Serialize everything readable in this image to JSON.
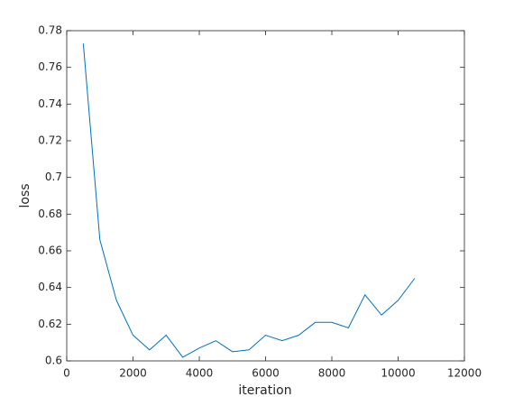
{
  "chart_data": {
    "type": "line",
    "xlabel": "iteration",
    "ylabel": "loss",
    "x": [
      500,
      1000,
      1500,
      2000,
      2500,
      3000,
      3500,
      4000,
      4500,
      5000,
      5500,
      6000,
      6500,
      7000,
      7500,
      8000,
      8500,
      9000,
      9500,
      10000,
      10500
    ],
    "series": [
      {
        "color": "#0072bd",
        "values": [
          0.773,
          0.666,
          0.633,
          0.614,
          0.606,
          0.614,
          0.602,
          0.607,
          0.611,
          0.605,
          0.606,
          0.614,
          0.611,
          0.614,
          0.621,
          0.621,
          0.618,
          0.636,
          0.625,
          0.633,
          0.645
        ]
      }
    ],
    "xlim": [
      0,
      12000
    ],
    "xticks": [
      0,
      2000,
      4000,
      6000,
      8000,
      10000,
      12000
    ],
    "ylim": [
      0.6,
      0.78
    ],
    "yticks": [
      0.6,
      0.62,
      0.64,
      0.66,
      0.68,
      0.7,
      0.72,
      0.74,
      0.76,
      0.78
    ],
    "grid": false
  }
}
